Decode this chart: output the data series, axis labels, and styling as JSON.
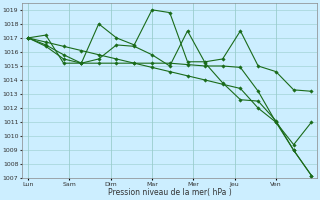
{
  "xlabel": "Pression niveau de la mer( hPa )",
  "xtick_labels": [
    "Lun",
    "Sam",
    "Dim",
    "Mar",
    "Mer",
    "Jeu",
    "Ven"
  ],
  "ylim": [
    1007,
    1019.5
  ],
  "background_color": "#cceeff",
  "grid_color": "#99cccc",
  "line_color": "#1a6b1a",
  "series_x": [
    [
      0,
      0.43,
      0.86,
      1.29,
      1.71,
      2.14,
      2.57,
      3.0,
      3.43,
      3.86,
      4.29,
      4.71,
      5.14,
      5.57,
      6.0,
      6.43,
      6.86
    ],
    [
      0,
      0.43,
      0.86,
      1.29,
      1.71,
      2.14,
      2.57,
      3.0,
      3.43,
      3.86,
      4.29,
      4.71,
      5.14,
      5.57,
      6.0,
      6.43,
      6.86
    ],
    [
      0,
      0.43,
      0.86,
      1.29,
      1.71,
      2.14,
      2.57,
      3.0,
      3.43,
      3.86,
      4.29,
      4.71,
      5.14,
      5.57,
      6.0,
      6.43,
      6.86
    ],
    [
      0,
      0.43,
      0.86,
      1.29,
      1.71,
      2.14,
      2.57,
      3.0,
      3.43,
      3.86,
      4.29,
      4.71,
      5.14,
      5.57,
      6.0,
      6.43,
      6.86
    ]
  ],
  "series_y": [
    [
      1017.0,
      1016.7,
      1016.4,
      1016.1,
      1015.8,
      1015.5,
      1015.2,
      1014.9,
      1014.6,
      1014.3,
      1014.0,
      1013.7,
      1013.4,
      1012.0,
      1011.0,
      1009.0,
      1007.2
    ],
    [
      1017.0,
      1016.5,
      1015.8,
      1015.2,
      1015.2,
      1015.2,
      1015.2,
      1015.2,
      1015.2,
      1015.1,
      1015.0,
      1015.0,
      1014.9,
      1013.2,
      1011.0,
      1009.4,
      1011.0
    ],
    [
      1017.0,
      1017.2,
      1015.2,
      1015.2,
      1018.0,
      1017.0,
      1016.5,
      1019.0,
      1018.8,
      1015.3,
      1015.3,
      1015.5,
      1017.5,
      1015.0,
      1014.6,
      1013.3,
      1013.2
    ],
    [
      1017.0,
      1016.4,
      1015.5,
      1015.2,
      1015.5,
      1016.5,
      1016.4,
      1015.8,
      1015.0,
      1017.5,
      1015.2,
      1013.8,
      1012.6,
      1012.5,
      1011.1,
      1009.0,
      1007.2
    ]
  ]
}
